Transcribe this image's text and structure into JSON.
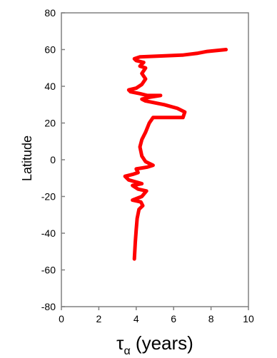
{
  "chart_data": {
    "type": "line",
    "xlabel": "τ",
    "xlabel_subscript": "α",
    "xlabel_suffix": " (years)",
    "ylabel": "Latitude",
    "xlim": [
      0,
      10
    ],
    "ylim": [
      -80,
      80
    ],
    "xticks": [
      0,
      2,
      4,
      6,
      8,
      10
    ],
    "yticks": [
      -80,
      -60,
      -40,
      -20,
      0,
      20,
      40,
      60,
      80
    ],
    "grid": false,
    "legend": "none",
    "series": [
      {
        "color": "#ff0000",
        "points": [
          [
            3.9,
            -54
          ],
          [
            3.95,
            -45
          ],
          [
            4.0,
            -38
          ],
          [
            4.05,
            -32
          ],
          [
            4.15,
            -27
          ],
          [
            4.35,
            -25
          ],
          [
            4.25,
            -23
          ],
          [
            3.8,
            -22
          ],
          [
            4.3,
            -20
          ],
          [
            4.55,
            -17
          ],
          [
            4.1,
            -16
          ],
          [
            3.8,
            -14
          ],
          [
            4.3,
            -13
          ],
          [
            3.6,
            -11
          ],
          [
            3.4,
            -9
          ],
          [
            3.8,
            -8
          ],
          [
            4.1,
            -7
          ],
          [
            4.0,
            -5
          ],
          [
            4.6,
            -4
          ],
          [
            4.9,
            -3
          ],
          [
            4.5,
            -1
          ],
          [
            4.3,
            2
          ],
          [
            4.2,
            7
          ],
          [
            4.3,
            11
          ],
          [
            4.5,
            15
          ],
          [
            4.7,
            20
          ],
          [
            4.9,
            23
          ],
          [
            6.5,
            23
          ],
          [
            6.6,
            26
          ],
          [
            6.2,
            28
          ],
          [
            5.5,
            30
          ],
          [
            5.0,
            31
          ],
          [
            4.5,
            32
          ],
          [
            4.3,
            33
          ],
          [
            4.7,
            34
          ],
          [
            5.3,
            35
          ],
          [
            4.6,
            35
          ],
          [
            4.2,
            36
          ],
          [
            3.7,
            37
          ],
          [
            3.6,
            38
          ],
          [
            4.0,
            39
          ],
          [
            4.3,
            41
          ],
          [
            4.5,
            44
          ],
          [
            4.3,
            47
          ],
          [
            4.5,
            50
          ],
          [
            4.2,
            51
          ],
          [
            4.4,
            53
          ],
          [
            4.0,
            54
          ],
          [
            3.9,
            55
          ],
          [
            4.2,
            56
          ],
          [
            6.5,
            57
          ],
          [
            7.3,
            58
          ],
          [
            7.8,
            59
          ],
          [
            8.8,
            60
          ]
        ]
      }
    ]
  }
}
